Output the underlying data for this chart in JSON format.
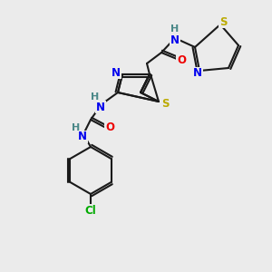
{
  "background_color": "#ebebeb",
  "atom_colors": {
    "C": "#1a1a1a",
    "N": "#0000ee",
    "S": "#bbaa00",
    "O": "#ee0000",
    "H": "#4a8888",
    "Cl": "#00aa00"
  },
  "figsize": [
    3.0,
    3.0
  ],
  "dpi": 100,
  "lw": 1.5,
  "fontsize": 8.5
}
